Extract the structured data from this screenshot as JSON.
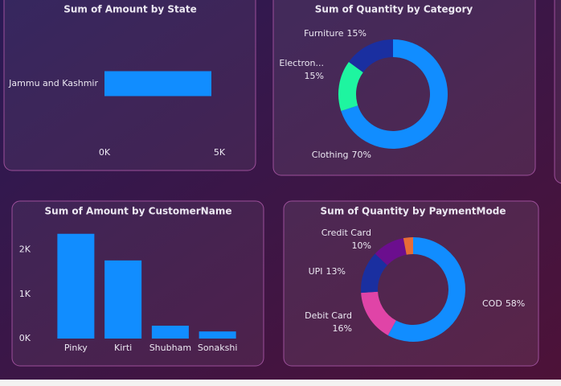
{
  "chart_data": [
    {
      "type": "hbar",
      "title": "Sum of Amount by State",
      "categories": [
        "Jammu and Kashmir"
      ],
      "values": [
        4650
      ],
      "color": "#118dff",
      "xlim": [
        0,
        5000
      ],
      "xticks": [
        {
          "value": 0,
          "label": "0K"
        },
        {
          "value": 5000,
          "label": "5K"
        }
      ]
    },
    {
      "type": "donut",
      "title": "Sum of Quantity by Category",
      "categories": [
        "Clothing",
        "Electron...",
        "Furniture"
      ],
      "values": [
        70,
        15,
        15
      ],
      "value_labels": [
        "70%",
        "15%",
        "15%"
      ],
      "colors": [
        "#118dff",
        "#1ef5a0",
        "#1a2fa0"
      ]
    },
    {
      "type": "bar",
      "title": "Sum of Amount by CustomerName",
      "categories": [
        "Pinky",
        "Kirti",
        "Shubham",
        "Sonakshi"
      ],
      "values": [
        2360,
        1760,
        290,
        160
      ],
      "color": "#118dff",
      "ylim": [
        0,
        2500
      ],
      "yticks": [
        {
          "value": 0,
          "label": "0K"
        },
        {
          "value": 1000,
          "label": "1K"
        },
        {
          "value": 2000,
          "label": "2K"
        }
      ]
    },
    {
      "type": "donut",
      "title": "Sum of Quantity by PaymentMode",
      "categories": [
        "COD",
        "Debit Card",
        "UPI",
        "Credit Card",
        null
      ],
      "values": [
        58,
        16,
        13,
        10,
        3
      ],
      "value_labels": [
        "58%",
        "16%",
        "13%",
        "10%",
        null
      ],
      "colors": [
        "#118dff",
        "#e044a7",
        "#1a2fa0",
        "#6b0e8e",
        "#e66c37"
      ]
    }
  ]
}
